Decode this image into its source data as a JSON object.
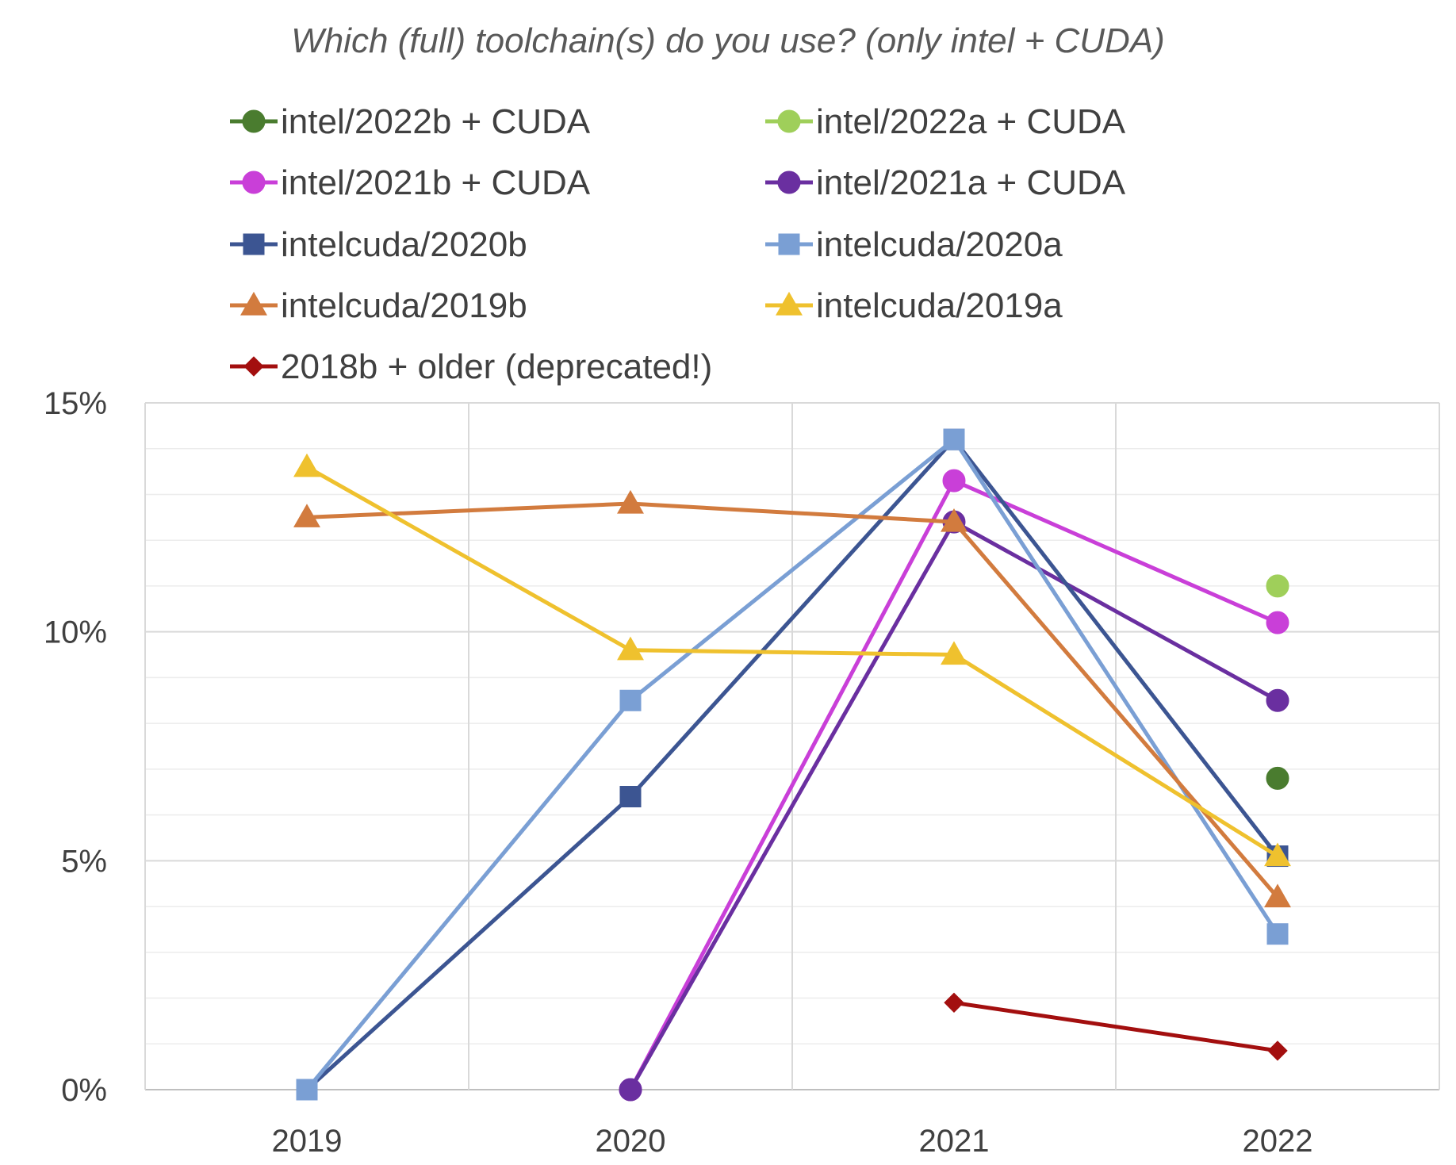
{
  "chart_data": {
    "type": "line",
    "title": "Which (full) toolchain(s) do you use? (only intel + CUDA)",
    "xlabel": "",
    "ylabel": "",
    "categories": [
      "2019",
      "2020",
      "2021",
      "2022"
    ],
    "ylim": [
      0,
      15
    ],
    "yticks": [
      0,
      5,
      10,
      15
    ],
    "ytick_labels": [
      "0%",
      "5%",
      "10%",
      "15%"
    ],
    "grid": true,
    "legend_position": "top",
    "series": [
      {
        "name": "intel/2022b + CUDA",
        "color": "#4a7c2f",
        "marker": "circle",
        "values": [
          null,
          null,
          null,
          6.8
        ]
      },
      {
        "name": "intel/2022a + CUDA",
        "color": "#9fcf5a",
        "marker": "circle",
        "values": [
          null,
          null,
          null,
          11.0
        ]
      },
      {
        "name": "intel/2021b + CUDA",
        "color": "#c93fd8",
        "marker": "circle",
        "values": [
          null,
          0,
          13.3,
          10.2
        ]
      },
      {
        "name": "intel/2021a + CUDA",
        "color": "#6a2fa0",
        "marker": "circle",
        "values": [
          null,
          0,
          12.4,
          8.5
        ]
      },
      {
        "name": "intelcuda/2020b",
        "color": "#3c5592",
        "marker": "square",
        "values": [
          0,
          6.4,
          14.2,
          5.1
        ]
      },
      {
        "name": "intelcuda/2020a",
        "color": "#7a9fd4",
        "marker": "square",
        "values": [
          0,
          8.5,
          14.2,
          3.4
        ]
      },
      {
        "name": "intelcuda/2019b",
        "color": "#d27b3e",
        "marker": "triangle",
        "values": [
          12.5,
          12.8,
          12.4,
          4.2
        ]
      },
      {
        "name": "intelcuda/2019a",
        "color": "#efc12e",
        "marker": "triangle",
        "values": [
          13.6,
          9.6,
          9.5,
          5.1
        ]
      },
      {
        "name": "2018b + older (deprecated!)",
        "color": "#a30f0f",
        "marker": "diamond",
        "values": [
          null,
          null,
          1.9,
          0.85
        ]
      }
    ]
  }
}
